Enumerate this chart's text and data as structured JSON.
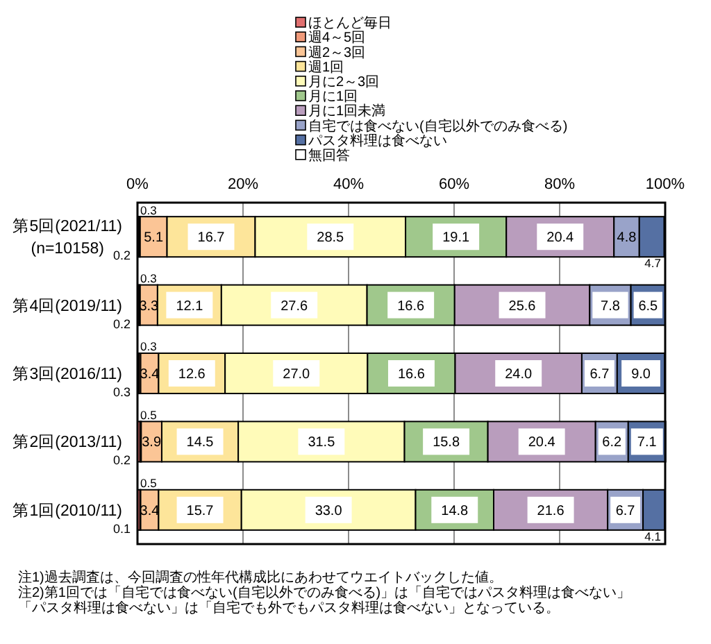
{
  "chart_data": {
    "type": "bar",
    "orientation": "horizontal",
    "stacked": true,
    "categories": [
      "第5回(2021/11)(n=10158)",
      "第4回(2019/11)",
      "第3回(2016/11)",
      "第2回(2013/11)",
      "第1回(2010/11)"
    ],
    "series": [
      {
        "name": "ほとんど毎日",
        "color": "#e06f6f",
        "values": [
          0.3,
          0.3,
          0.3,
          0.5,
          0.5
        ],
        "value_labels": [
          "0.3",
          "0.3",
          "0.3",
          "0.5",
          "0.5"
        ]
      },
      {
        "name": "週4～5回",
        "color": "#f09a7a",
        "values": [
          0.2,
          0.2,
          0.3,
          0.2,
          0.1
        ],
        "value_labels": [
          "0.2",
          "0.2",
          "0.3",
          "0.2",
          "0.1"
        ]
      },
      {
        "name": "週2～3回",
        "color": "#fbc596",
        "values": [
          5.1,
          3.3,
          3.4,
          3.9,
          3.4
        ],
        "value_labels": [
          "5.1",
          "3.3",
          "3.4",
          "3.9",
          "3.4"
        ]
      },
      {
        "name": "週1回",
        "color": "#fde59a",
        "values": [
          16.7,
          12.1,
          12.6,
          14.5,
          15.7
        ],
        "value_labels": [
          "16.7",
          "12.1",
          "12.6",
          "14.5",
          "15.7"
        ]
      },
      {
        "name": "月に2～3回",
        "color": "#fffbb9",
        "values": [
          28.5,
          27.6,
          27.0,
          31.5,
          33.0
        ],
        "value_labels": [
          "28.5",
          "27.6",
          "27.0",
          "31.5",
          "33.0"
        ]
      },
      {
        "name": "月に1回",
        "color": "#a0c88c",
        "values": [
          19.1,
          16.6,
          16.6,
          15.8,
          14.8
        ],
        "value_labels": [
          "19.1",
          "16.6",
          "16.6",
          "15.8",
          "14.8"
        ]
      },
      {
        "name": "月に1回未満",
        "color": "#b99dbd",
        "values": [
          20.4,
          25.6,
          24.0,
          20.4,
          21.6
        ],
        "value_labels": [
          "20.4",
          "25.6",
          "24.0",
          "20.4",
          "21.6"
        ]
      },
      {
        "name": "自宅では食べない(自宅以外でのみ食べる)",
        "color": "#99a3c9",
        "values": [
          4.8,
          7.8,
          6.7,
          6.2,
          6.7
        ],
        "value_labels": [
          "4.8",
          "7.8",
          "6.7",
          "6.2",
          "6.7"
        ]
      },
      {
        "name": "パスタ料理は食べない",
        "color": "#5570a3",
        "values": [
          4.7,
          6.5,
          9.0,
          7.1,
          4.1
        ],
        "value_labels": [
          "4.7",
          "6.5",
          "9.0",
          "7.1",
          "4.1"
        ]
      },
      {
        "name": "無回答",
        "color": "#ffffff",
        "values": [
          null,
          null,
          null,
          null,
          null
        ]
      }
    ],
    "xlim": [
      0,
      100
    ],
    "xticks": [
      {
        "value": 0,
        "label": "0%"
      },
      {
        "value": 20,
        "label": "20%"
      },
      {
        "value": 40,
        "label": "40%"
      },
      {
        "value": 60,
        "label": "60%"
      },
      {
        "value": 80,
        "label": "80%"
      },
      {
        "value": 100,
        "label": "100%"
      }
    ],
    "grid": "x",
    "legend": "top",
    "annotations": [
      "注1)過去調査は、今回調査の性年代構成比にあわせてウエイトバックした値。",
      "注2)第1回では「自宅では食べない(自宅以外でのみ食べる)」は「自宅ではパスタ料理は食べない」",
      "「パスタ料理は食べない」は「自宅でも外でもパスタ料理は食べない」となっている。"
    ]
  }
}
